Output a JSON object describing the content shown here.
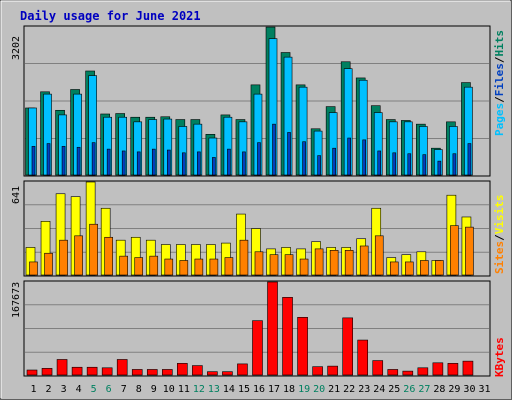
{
  "title": "Daily usage for June 2021",
  "colors": {
    "background": "#c0c0c0",
    "title": "#0000c0",
    "hits_front": "#008060",
    "files": "#00c0ff",
    "pages": "#0040c0",
    "visits": "#ffff00",
    "sites": "#ff8000",
    "kbytes": "#ff0000",
    "weekend": "#008060",
    "grid": "#808080"
  },
  "labels": {
    "hits": "Hits",
    "files": "Files",
    "pages": "Pages",
    "visits": "Visits",
    "sites": "Sites",
    "kbytes": "KBytes",
    "sep": "/"
  },
  "chart_data": [
    {
      "type": "bar",
      "title": "Daily usage for June 2021",
      "ylabel": "3202",
      "ylim": [
        0,
        3202
      ],
      "categories": [
        "1",
        "2",
        "3",
        "4",
        "5",
        "6",
        "7",
        "8",
        "9",
        "10",
        "11",
        "12",
        "13",
        "14",
        "15",
        "16",
        "17",
        "18",
        "19",
        "20",
        "21",
        "22",
        "23",
        "24",
        "25",
        "26",
        "27",
        "28",
        "29",
        "30",
        "31"
      ],
      "weekend_days": [
        5,
        6,
        12,
        13,
        19,
        20,
        26,
        27
      ],
      "series": [
        {
          "name": "Hits",
          "values": [
            1450,
            1800,
            1400,
            1850,
            2250,
            1320,
            1330,
            1250,
            1250,
            1260,
            1200,
            1200,
            880,
            1300,
            1200,
            1950,
            3200,
            2650,
            1950,
            1000,
            1480,
            2450,
            2100,
            1500,
            1200,
            1180,
            1100,
            580,
            1150,
            2000,
            0
          ]
        },
        {
          "name": "Files",
          "values": [
            1450,
            1750,
            1300,
            1750,
            2150,
            1250,
            1250,
            1150,
            1200,
            1210,
            1050,
            1100,
            800,
            1250,
            1150,
            1750,
            2950,
            2550,
            1900,
            950,
            1350,
            2300,
            2050,
            1350,
            1150,
            1150,
            1050,
            550,
            1050,
            1900,
            0
          ]
        },
        {
          "name": "Pages",
          "values": [
            620,
            680,
            620,
            600,
            700,
            560,
            520,
            500,
            560,
            540,
            480,
            500,
            380,
            560,
            500,
            700,
            1100,
            920,
            720,
            420,
            580,
            800,
            760,
            520,
            480,
            460,
            440,
            300,
            460,
            680,
            0
          ]
        }
      ]
    },
    {
      "type": "bar",
      "ylabel": "641",
      "ylim": [
        0,
        641
      ],
      "categories": [
        "1",
        "2",
        "3",
        "4",
        "5",
        "6",
        "7",
        "8",
        "9",
        "10",
        "11",
        "12",
        "13",
        "14",
        "15",
        "16",
        "17",
        "18",
        "19",
        "20",
        "21",
        "22",
        "23",
        "24",
        "25",
        "26",
        "27",
        "28",
        "29",
        "30",
        "31"
      ],
      "series": [
        {
          "name": "Visits",
          "values": [
            190,
            370,
            560,
            540,
            641,
            460,
            240,
            260,
            240,
            210,
            210,
            210,
            210,
            220,
            420,
            320,
            180,
            190,
            180,
            230,
            190,
            190,
            250,
            460,
            120,
            140,
            160,
            100,
            550,
            400,
            0
          ]
        },
        {
          "name": "Sites",
          "values": [
            90,
            150,
            240,
            270,
            350,
            260,
            130,
            120,
            130,
            110,
            100,
            110,
            110,
            120,
            240,
            160,
            140,
            140,
            110,
            180,
            170,
            170,
            200,
            270,
            90,
            90,
            100,
            100,
            340,
            330,
            0
          ]
        }
      ]
    },
    {
      "type": "bar",
      "ylabel": "167673",
      "ylim": [
        0,
        167673
      ],
      "categories": [
        "1",
        "2",
        "3",
        "4",
        "5",
        "6",
        "7",
        "8",
        "9",
        "10",
        "11",
        "12",
        "13",
        "14",
        "15",
        "16",
        "17",
        "18",
        "19",
        "20",
        "21",
        "22",
        "23",
        "24",
        "25",
        "26",
        "27",
        "28",
        "29",
        "30",
        "31"
      ],
      "series": [
        {
          "name": "KBytes",
          "values": [
            9000,
            12000,
            28000,
            14000,
            14000,
            13000,
            28000,
            10000,
            10000,
            10000,
            21000,
            17000,
            6000,
            6000,
            20000,
            98000,
            168000,
            140000,
            104000,
            15000,
            16000,
            103000,
            63000,
            26000,
            10000,
            7000,
            13000,
            22000,
            21000,
            25000,
            0
          ]
        }
      ]
    }
  ]
}
